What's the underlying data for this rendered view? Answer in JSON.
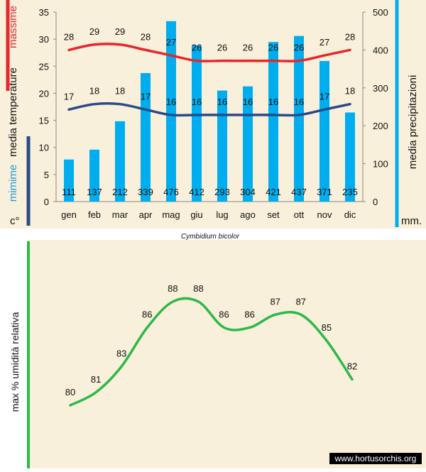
{
  "colors": {
    "background": "#f8f0da",
    "max_line": "#e8262a",
    "min_line": "#2a4a8a",
    "bars": "#00aeef",
    "humidity_line": "#2fb84a",
    "text": "#111111",
    "max_label": "#e8262a",
    "min_label": "#1a9be0"
  },
  "chart_data": [
    {
      "type": "bar+line",
      "title": "Cymbidium bicolor",
      "categories": [
        "gen",
        "feb",
        "mar",
        "apr",
        "mag",
        "giu",
        "lug",
        "ago",
        "set",
        "ott",
        "nov",
        "dic"
      ],
      "left_axis": {
        "label_parts": {
          "top": "massime",
          "middle": "media  temperature",
          "bottom": "mimime"
        },
        "unit": "c°",
        "range": [
          0,
          35
        ],
        "ticks": [
          0,
          5,
          10,
          15,
          20,
          25,
          30,
          35
        ]
      },
      "right_axis": {
        "label": "media  precipitazioni",
        "unit": "mm.",
        "range": [
          0,
          500
        ],
        "ticks": [
          0,
          100,
          200,
          300,
          400,
          500
        ]
      },
      "series": [
        {
          "name": "massime",
          "kind": "line",
          "axis": "left",
          "values": [
            28,
            29,
            29,
            28,
            27,
            26,
            26,
            26,
            26,
            26,
            27,
            28
          ]
        },
        {
          "name": "mimime",
          "kind": "line",
          "axis": "left",
          "values": [
            17,
            18,
            18,
            17,
            16,
            16,
            16,
            16,
            16,
            16,
            17,
            18
          ]
        },
        {
          "name": "precipitazioni",
          "kind": "bar",
          "axis": "right",
          "values": [
            111,
            137,
            212,
            339,
            476,
            412,
            293,
            304,
            421,
            437,
            371,
            235
          ]
        }
      ]
    },
    {
      "type": "line",
      "ylabel": "max  %  umidità relativa",
      "categories": [
        "gen",
        "feb",
        "mar",
        "apr",
        "mag",
        "giu",
        "lug",
        "ago",
        "set",
        "ott",
        "nov",
        "dic"
      ],
      "values": [
        80,
        81,
        83,
        86,
        88,
        88,
        86,
        86,
        87,
        87,
        85,
        82
      ],
      "range": [
        79,
        89
      ]
    }
  ],
  "watermark": "www.hortusorchis.org"
}
